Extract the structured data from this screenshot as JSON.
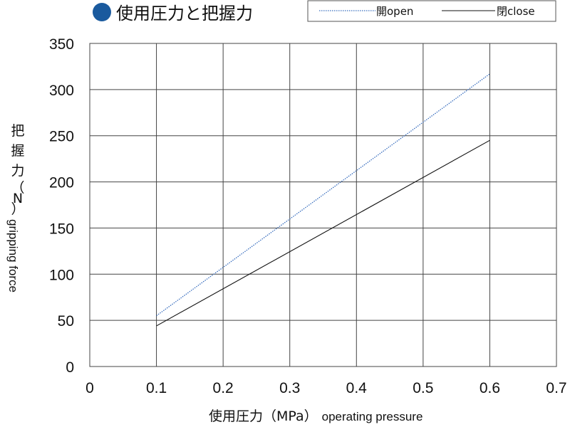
{
  "chart_data": {
    "type": "line",
    "title": "使用圧力と把握力",
    "xlabel": "使用圧力（MPa） operating pressure",
    "xlabel_main": "使用圧力（MPa）",
    "xlabel_sub": "operating pressure",
    "ylabel": "把握力（N） gripping force",
    "ylabel_main": [
      "把",
      "握",
      "力",
      "（",
      "N",
      "）"
    ],
    "ylabel_sub": "gripping force",
    "xlim": [
      0,
      0.7
    ],
    "ylim": [
      0,
      350
    ],
    "xticks": [
      "0",
      "0.1",
      "0.2",
      "0.3",
      "0.4",
      "0.5",
      "0.6",
      "0.7"
    ],
    "yticks": [
      "0",
      "50",
      "100",
      "150",
      "200",
      "250",
      "300",
      "350"
    ],
    "grid": true,
    "legend_position": "top-right",
    "series": [
      {
        "name": "開open",
        "style": "dotted",
        "color": "#3a6fbf",
        "x": [
          0.1,
          0.6
        ],
        "y": [
          55,
          317
        ]
      },
      {
        "name": "閉close",
        "style": "solid",
        "color": "#111111",
        "x": [
          0.1,
          0.6
        ],
        "y": [
          44,
          245
        ]
      }
    ]
  },
  "colors": {
    "title_bullet": "#1a5a9e",
    "grid": "#444444"
  }
}
